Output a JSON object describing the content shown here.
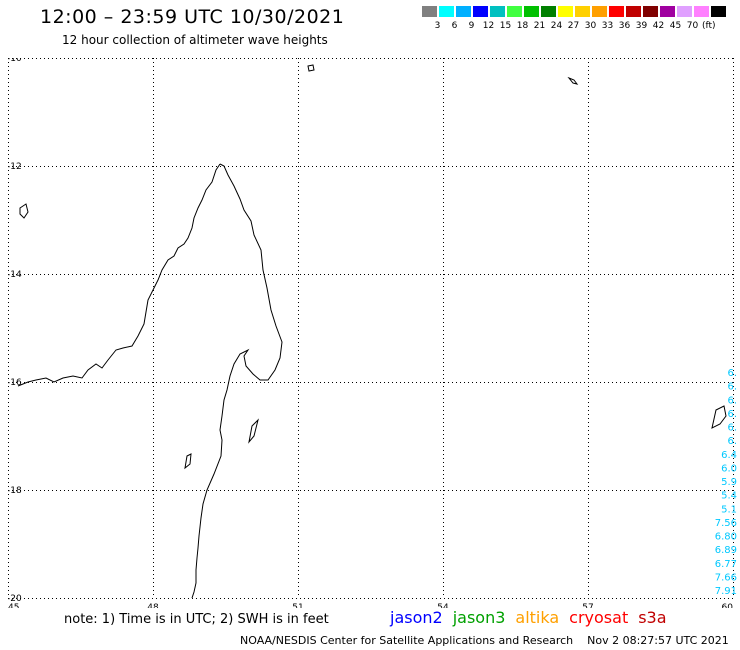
{
  "header": {
    "title": "12:00 – 23:59 UTC 10/30/2021",
    "subtitle": "12 hour collection of altimeter wave heights"
  },
  "legend": {
    "unit": "(ft)",
    "colors": [
      "#808080",
      "#00ffff",
      "#00b0ff",
      "#0000ff",
      "#00c0c0",
      "#40ff40",
      "#00c000",
      "#008000",
      "#ffff00",
      "#ffd000",
      "#ffa000",
      "#ff0000",
      "#c00000",
      "#800000",
      "#a000a0",
      "#e0a0ff",
      "#ff80ff",
      "#000000"
    ],
    "labels": [
      "3",
      "6",
      "9",
      "12",
      "15",
      "18",
      "21",
      "24",
      "27",
      "30",
      "33",
      "36",
      "39",
      "42",
      "45",
      "70"
    ]
  },
  "map": {
    "lat_ticks": [
      "-10",
      "-12",
      "-14",
      "-16",
      "-18",
      "-20"
    ],
    "lon_ticks": [
      "45",
      "48",
      "51",
      "54",
      "57",
      "60"
    ],
    "obs_values": [
      "6.",
      "6.",
      "6.",
      "6.",
      "6.",
      "6.",
      "6.4",
      "6.0",
      "5.9",
      "5.4",
      "5.1",
      "7.56",
      "6.80",
      "6.89",
      "6.77",
      "7.66",
      "7.91"
    ],
    "obs_color": "#00c8ff",
    "coast_color": "#000000"
  },
  "footer": {
    "note": "note: 1) Time is in UTC; 2) SWH is in feet",
    "satellites": [
      {
        "name": "jason2",
        "color": "#0000ff"
      },
      {
        "name": "jason3",
        "color": "#00a000"
      },
      {
        "name": "altika",
        "color": "#ffa000"
      },
      {
        "name": "cryosat",
        "color": "#ff0000"
      },
      {
        "name": "s3a",
        "color": "#c00000"
      }
    ],
    "credit": "NOAA/NESDIS Center for Satellite Applications and Research",
    "timestamp": "Nov  2 08:27:57 UTC 2021"
  }
}
